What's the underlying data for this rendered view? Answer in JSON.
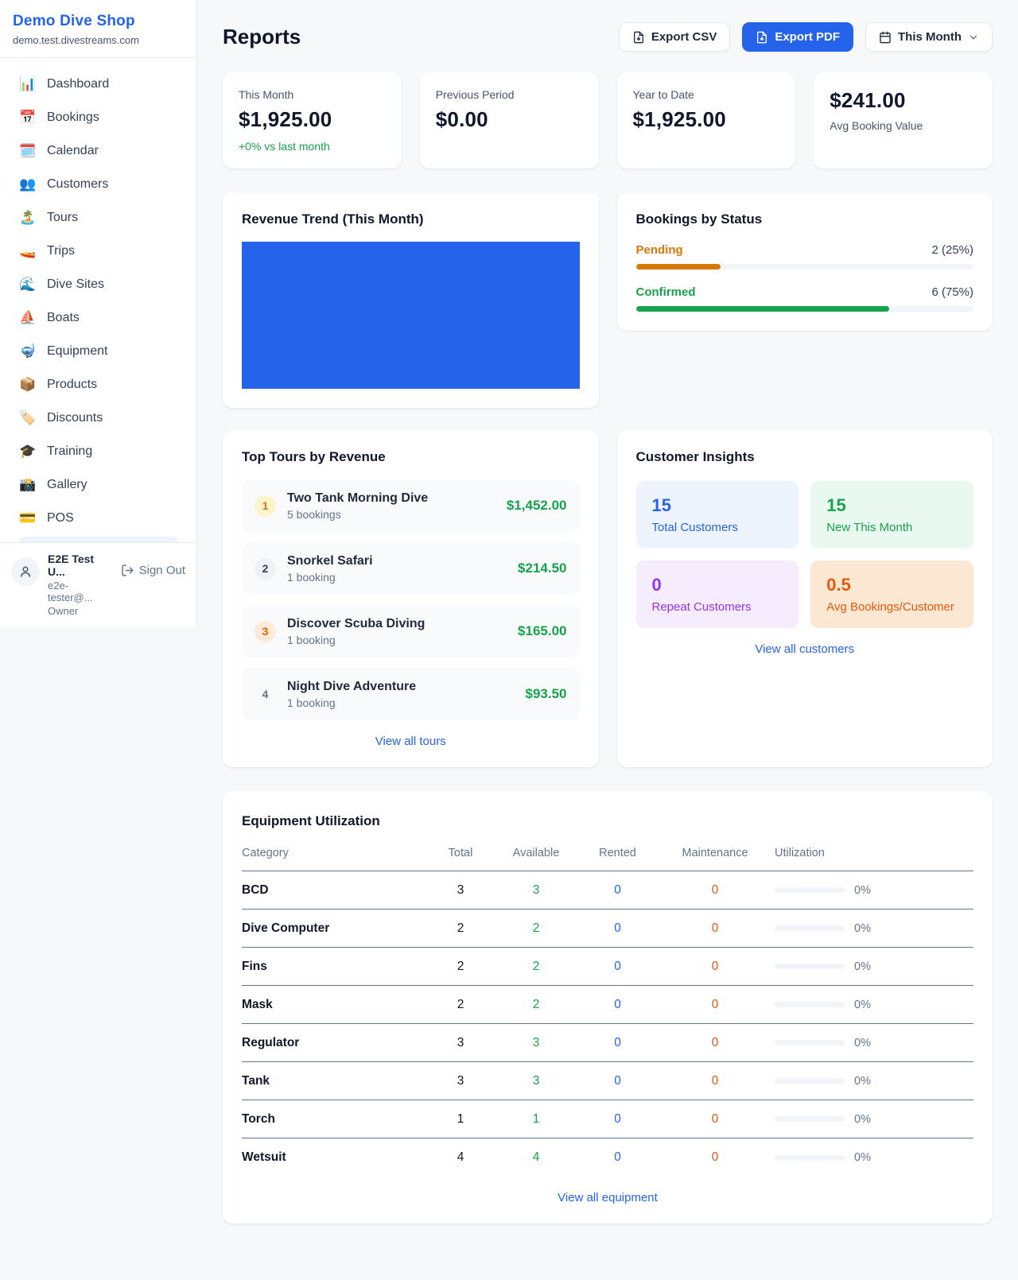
{
  "colors": {
    "accent_blue": "#2563eb",
    "green": "#16a34a",
    "orange_pending": "#d97706",
    "orange_deep": "#ea580c",
    "purple": "#9333ea"
  },
  "sidebar": {
    "brand": "Demo Dive Shop",
    "domain": "demo.test.divestreams.com",
    "items": [
      {
        "icon": "📊",
        "label": "Dashboard"
      },
      {
        "icon": "📅",
        "label": "Bookings"
      },
      {
        "icon": "🗓️",
        "label": "Calendar"
      },
      {
        "icon": "👥",
        "label": "Customers"
      },
      {
        "icon": "🏝️",
        "label": "Tours"
      },
      {
        "icon": "🚤",
        "label": "Trips"
      },
      {
        "icon": "🌊",
        "label": "Dive Sites"
      },
      {
        "icon": "⛵",
        "label": "Boats"
      },
      {
        "icon": "🤿",
        "label": "Equipment"
      },
      {
        "icon": "📦",
        "label": "Products"
      },
      {
        "icon": "🏷️",
        "label": "Discounts"
      },
      {
        "icon": "🎓",
        "label": "Training"
      },
      {
        "icon": "📸",
        "label": "Gallery"
      },
      {
        "icon": "💳",
        "label": "POS"
      }
    ],
    "user": {
      "name": "E2E Test U...",
      "email": "e2e-tester@...",
      "role": "Owner",
      "sign_out": "Sign Out"
    }
  },
  "header": {
    "title": "Reports",
    "export_csv": "Export CSV",
    "export_pdf": "Export PDF",
    "period": "This Month"
  },
  "stats": {
    "cards": [
      {
        "label": "This Month",
        "value": "$1,925.00",
        "delta": "+0% vs last month"
      },
      {
        "label": "Previous Period",
        "value": "$0.00"
      },
      {
        "label": "Year to Date",
        "value": "$1,925.00"
      },
      {
        "label": "Avg Booking Value",
        "value": "$241.00"
      }
    ]
  },
  "revenue_trend": {
    "title": "Revenue Trend (This Month)"
  },
  "bookings_by_status": {
    "title": "Bookings by Status",
    "rows": [
      {
        "label": "Pending",
        "count": "2 (25%)",
        "pct": 25
      },
      {
        "label": "Confirmed",
        "count": "6 (75%)",
        "pct": 75
      }
    ]
  },
  "top_tours": {
    "title": "Top Tours by Revenue",
    "rows": [
      {
        "rank": "1",
        "name": "Two Tank Morning Dive",
        "bookings": "5 bookings",
        "revenue": "$1,452.00"
      },
      {
        "rank": "2",
        "name": "Snorkel Safari",
        "bookings": "1 booking",
        "revenue": "$214.50"
      },
      {
        "rank": "3",
        "name": "Discover Scuba Diving",
        "bookings": "1 booking",
        "revenue": "$165.00"
      },
      {
        "rank": "4",
        "name": "Night Dive Adventure",
        "bookings": "1 booking",
        "revenue": "$93.50"
      }
    ],
    "view_all": "View all tours"
  },
  "customer_insights": {
    "title": "Customer Insights",
    "tiles": [
      {
        "value": "15",
        "label": "Total Customers"
      },
      {
        "value": "15",
        "label": "New This Month"
      },
      {
        "value": "0",
        "label": "Repeat Customers"
      },
      {
        "value": "0.5",
        "label": "Avg Bookings/Customer"
      }
    ],
    "view_all": "View all customers"
  },
  "equipment": {
    "title": "Equipment Utilization",
    "headers": [
      "Category",
      "Total",
      "Available",
      "Rented",
      "Maintenance",
      "Utilization"
    ],
    "rows": [
      {
        "category": "BCD",
        "total": "3",
        "available": "3",
        "rented": "0",
        "maintenance": "0",
        "utilization": "0%",
        "pct": 0
      },
      {
        "category": "Dive Computer",
        "total": "2",
        "available": "2",
        "rented": "0",
        "maintenance": "0",
        "utilization": "0%",
        "pct": 0
      },
      {
        "category": "Fins",
        "total": "2",
        "available": "2",
        "rented": "0",
        "maintenance": "0",
        "utilization": "0%",
        "pct": 0
      },
      {
        "category": "Mask",
        "total": "2",
        "available": "2",
        "rented": "0",
        "maintenance": "0",
        "utilization": "0%",
        "pct": 0
      },
      {
        "category": "Regulator",
        "total": "3",
        "available": "3",
        "rented": "0",
        "maintenance": "0",
        "utilization": "0%",
        "pct": 0
      },
      {
        "category": "Tank",
        "total": "3",
        "available": "3",
        "rented": "0",
        "maintenance": "0",
        "utilization": "0%",
        "pct": 0
      },
      {
        "category": "Torch",
        "total": "1",
        "available": "1",
        "rented": "0",
        "maintenance": "0",
        "utilization": "0%",
        "pct": 0
      },
      {
        "category": "Wetsuit",
        "total": "4",
        "available": "4",
        "rented": "0",
        "maintenance": "0",
        "utilization": "0%",
        "pct": 0
      }
    ],
    "view_all": "View all equipment"
  }
}
